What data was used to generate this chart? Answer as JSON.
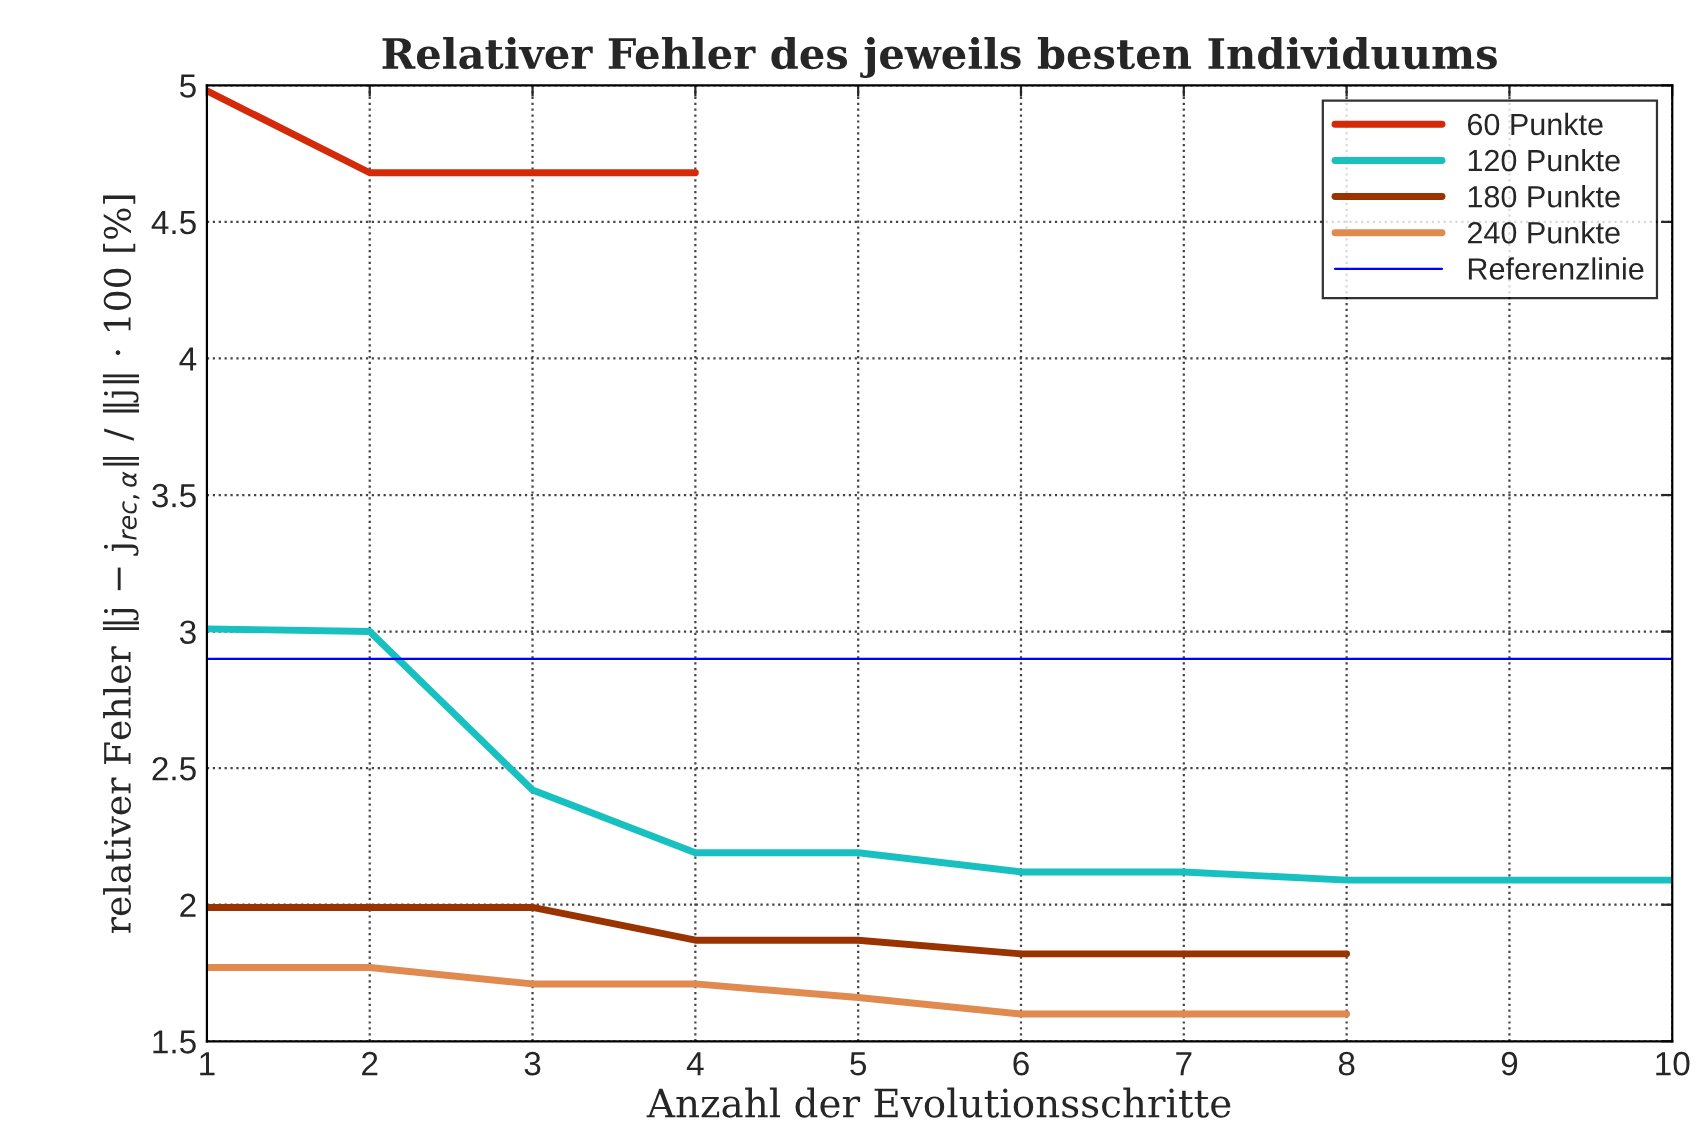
{
  "chart_data": {
    "type": "line",
    "title": "Relativer Fehler des jeweils besten Individuums",
    "xlabel": "Anzahl der Evolutionsschritte",
    "ylabel": "relativer Fehler ‖j − j$_{rec,α}$‖ / ‖j‖ · 100 [%]",
    "x": [
      1,
      2,
      3,
      4,
      5,
      6,
      7,
      8,
      9,
      10
    ],
    "series": [
      {
        "name": "60 Punkte",
        "color": "#d42a0a",
        "values": [
          4.98,
          4.68,
          4.68,
          4.68,
          null,
          null,
          null,
          null,
          null,
          null
        ]
      },
      {
        "name": "120 Punkte",
        "color": "#19c0c0",
        "values": [
          3.01,
          3.0,
          2.42,
          2.19,
          2.19,
          2.12,
          2.12,
          2.09,
          2.09,
          2.09
        ]
      },
      {
        "name": "180 Punkte",
        "color": "#993300",
        "values": [
          1.99,
          1.99,
          1.99,
          1.87,
          1.87,
          1.82,
          1.82,
          1.82,
          null,
          null
        ]
      },
      {
        "name": "240 Punkte",
        "color": "#e08a50",
        "values": [
          1.77,
          1.77,
          1.71,
          1.71,
          1.66,
          1.6,
          1.6,
          1.6,
          null,
          null
        ]
      }
    ],
    "ref_lines": [
      {
        "axis": "y",
        "value": 2.9,
        "label": "Referenzlinie",
        "color": "#0000ff",
        "line_style": "solid"
      }
    ],
    "xlim": [
      1,
      10
    ],
    "xticks": [
      1,
      2,
      3,
      4,
      5,
      6,
      7,
      8,
      9,
      10
    ],
    "ylim": [
      1.5,
      5
    ],
    "yticks": [
      1.5,
      2,
      2.5,
      3,
      3.5,
      4,
      4.5,
      5
    ],
    "grid": true,
    "legend": "top right",
    "marker": "none",
    "line_style": "solid"
  }
}
